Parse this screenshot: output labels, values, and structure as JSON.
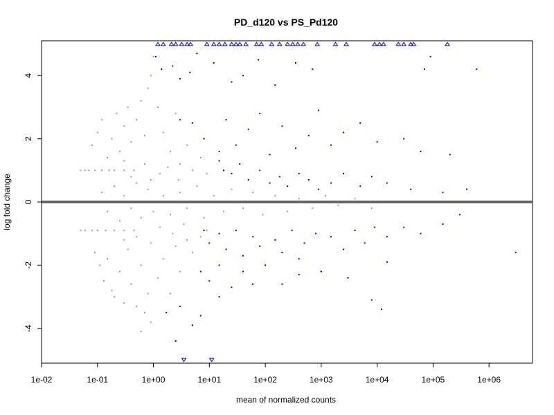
{
  "chart_data": {
    "type": "scatter",
    "title": "PD_d120 vs PS_Pd120",
    "xlabel": "mean of normalized counts",
    "ylabel": "log fold change",
    "x_scale": "log10",
    "xlim": [
      0.01,
      6000000
    ],
    "ylim": [
      -5.1,
      5.1
    ],
    "x_ticks": [
      0.01,
      0.1,
      1,
      10,
      100,
      1000,
      10000,
      100000,
      1000000
    ],
    "x_tick_labels": [
      "1e-02",
      "1e-01",
      "1e+00",
      "1e+01",
      "1e+02",
      "1e+03",
      "1e+04",
      "1e+05",
      "1e+06"
    ],
    "y_ticks": [
      -4,
      -2,
      0,
      2,
      4
    ],
    "y_tick_labels": [
      "-4",
      "-2",
      "0",
      "2",
      "4"
    ],
    "grid": false,
    "colors": {
      "not_significant": "#999999",
      "significant": "#0000cc",
      "zero_line": "#666666"
    },
    "series": [
      {
        "color": "#999999",
        "points": [
          [
            0.05,
            1.0
          ],
          [
            0.06,
            1.0
          ],
          [
            0.07,
            1.0
          ],
          [
            0.09,
            1.0
          ],
          [
            0.12,
            1.0
          ],
          [
            0.16,
            1.0
          ],
          [
            0.2,
            1.0
          ],
          [
            0.3,
            1.0
          ],
          [
            0.45,
            1.0
          ],
          [
            0.05,
            -0.9
          ],
          [
            0.06,
            -0.9
          ],
          [
            0.08,
            -0.9
          ],
          [
            0.1,
            -0.9
          ],
          [
            0.14,
            -0.9
          ],
          [
            0.2,
            -0.9
          ],
          [
            0.3,
            -0.9
          ],
          [
            0.45,
            -0.9
          ],
          [
            0.08,
            1.8
          ],
          [
            0.1,
            2.2
          ],
          [
            0.12,
            2.6
          ],
          [
            0.15,
            1.4
          ],
          [
            0.18,
            2.0
          ],
          [
            0.22,
            2.8
          ],
          [
            0.25,
            1.6
          ],
          [
            0.3,
            2.4
          ],
          [
            0.35,
            3.0
          ],
          [
            0.4,
            1.9
          ],
          [
            0.5,
            2.6
          ],
          [
            0.6,
            3.2
          ],
          [
            0.7,
            2.1
          ],
          [
            0.8,
            3.6
          ],
          [
            0.9,
            4.0
          ],
          [
            1.0,
            4.6
          ],
          [
            0.09,
            -1.6
          ],
          [
            0.11,
            -2.0
          ],
          [
            0.13,
            -2.5
          ],
          [
            0.15,
            -1.8
          ],
          [
            0.18,
            -2.8
          ],
          [
            0.2,
            -3.0
          ],
          [
            0.25,
            -2.2
          ],
          [
            0.3,
            -3.2
          ],
          [
            0.35,
            -1.5
          ],
          [
            0.4,
            -2.6
          ],
          [
            0.5,
            -3.3
          ],
          [
            0.6,
            -2.0
          ],
          [
            0.7,
            -3.5
          ],
          [
            0.8,
            -2.9
          ],
          [
            0.9,
            -3.8
          ],
          [
            0.6,
            -4.1
          ],
          [
            0.12,
            0.3
          ],
          [
            0.15,
            -0.3
          ],
          [
            0.2,
            0.5
          ],
          [
            0.25,
            -0.6
          ],
          [
            0.3,
            0.2
          ],
          [
            0.4,
            -0.2
          ],
          [
            0.5,
            0.6
          ],
          [
            0.6,
            -0.5
          ],
          [
            0.8,
            0.4
          ],
          [
            1.0,
            -0.3
          ],
          [
            1.5,
            0.2
          ],
          [
            2.0,
            -0.4
          ],
          [
            3.0,
            0.3
          ],
          [
            4.0,
            -0.2
          ],
          [
            6.0,
            0.5
          ],
          [
            8.0,
            -0.5
          ],
          [
            12,
            0.2
          ],
          [
            18,
            -0.3
          ],
          [
            25,
            0.4
          ],
          [
            40,
            -0.2
          ],
          [
            60,
            0.3
          ],
          [
            90,
            -0.4
          ],
          [
            150,
            0.2
          ],
          [
            250,
            -0.3
          ],
          [
            400,
            0.1
          ],
          [
            700,
            -0.2
          ],
          [
            1200,
            0.2
          ],
          [
            2000,
            -0.1
          ],
          [
            4000,
            0.1
          ],
          [
            8000,
            -0.2
          ],
          [
            1.2,
            3.0
          ],
          [
            1.5,
            2.2
          ],
          [
            2.0,
            1.6
          ],
          [
            2.5,
            2.8
          ],
          [
            3.0,
            1.2
          ],
          [
            4.0,
            1.8
          ],
          [
            5.0,
            1.0
          ],
          [
            7.0,
            1.4
          ],
          [
            9.0,
            0.9
          ],
          [
            1.2,
            -2.4
          ],
          [
            1.5,
            -1.8
          ],
          [
            2.0,
            -2.9
          ],
          [
            2.5,
            -1.4
          ],
          [
            3.0,
            -2.2
          ],
          [
            4.0,
            -1.2
          ],
          [
            5.0,
            -1.6
          ],
          [
            7.0,
            -1.1
          ],
          [
            9.0,
            -0.9
          ],
          [
            0.3,
            1.3
          ],
          [
            0.4,
            0.8
          ],
          [
            0.7,
            1.2
          ],
          [
            0.9,
            0.7
          ],
          [
            1.3,
            0.9
          ],
          [
            1.8,
            1.1
          ],
          [
            2.8,
            0.7
          ],
          [
            0.3,
            -1.2
          ],
          [
            0.5,
            -1.1
          ],
          [
            0.9,
            -1.3
          ],
          [
            1.3,
            -0.8
          ],
          [
            2.2,
            -1.0
          ],
          [
            3.5,
            -0.7
          ]
        ]
      },
      {
        "color": "#0000cc",
        "points": [
          [
            1.1,
            4.6
          ],
          [
            1.4,
            4.2
          ],
          [
            2.2,
            4.3
          ],
          [
            3.0,
            3.9
          ],
          [
            4.5,
            4.1
          ],
          [
            6.0,
            4.7
          ],
          [
            12,
            4.4
          ],
          [
            25,
            3.8
          ],
          [
            40,
            4.0
          ],
          [
            75,
            4.5
          ],
          [
            150,
            3.7
          ],
          [
            350,
            4.4
          ],
          [
            700,
            4.2
          ],
          [
            70000,
            4.2
          ],
          [
            90000,
            4.6
          ],
          [
            600000,
            4.2
          ],
          [
            3.0,
            2.6
          ],
          [
            5.0,
            2.5
          ],
          [
            8.0,
            2.0
          ],
          [
            15,
            1.6
          ],
          [
            20,
            2.6
          ],
          [
            30,
            1.8
          ],
          [
            50,
            2.3
          ],
          [
            80,
            2.8
          ],
          [
            120,
            1.5
          ],
          [
            200,
            2.4
          ],
          [
            350,
            1.7
          ],
          [
            600,
            2.1
          ],
          [
            900,
            2.9
          ],
          [
            1500,
            1.8
          ],
          [
            2500,
            2.2
          ],
          [
            5000,
            2.5
          ],
          [
            10000,
            1.9
          ],
          [
            30000,
            2.0
          ],
          [
            60000,
            1.6
          ],
          [
            200000,
            1.5
          ],
          [
            15,
            1.3
          ],
          [
            18,
            1.0
          ],
          [
            25,
            0.9
          ],
          [
            35,
            1.2
          ],
          [
            50,
            0.7
          ],
          [
            80,
            1.0
          ],
          [
            120,
            0.6
          ],
          [
            180,
            0.8
          ],
          [
            250,
            0.5
          ],
          [
            400,
            0.9
          ],
          [
            600,
            0.7
          ],
          [
            900,
            0.4
          ],
          [
            1500,
            0.6
          ],
          [
            2500,
            0.9
          ],
          [
            5000,
            0.5
          ],
          [
            8000,
            0.8
          ],
          [
            15000,
            0.6
          ],
          [
            40000,
            0.4
          ],
          [
            150000,
            0.3
          ],
          [
            400000,
            0.4
          ],
          [
            8,
            -0.9
          ],
          [
            10,
            -1.3
          ],
          [
            15,
            -1.0
          ],
          [
            20,
            -1.5
          ],
          [
            30,
            -0.9
          ],
          [
            40,
            -1.7
          ],
          [
            60,
            -1.1
          ],
          [
            80,
            -1.4
          ],
          [
            100,
            -2.0
          ],
          [
            150,
            -1.2
          ],
          [
            200,
            -1.6
          ],
          [
            300,
            -0.9
          ],
          [
            400,
            -1.8
          ],
          [
            500,
            -1.3
          ],
          [
            800,
            -1.0
          ],
          [
            1000,
            -2.2
          ],
          [
            1500,
            -1.1
          ],
          [
            2500,
            -1.5
          ],
          [
            4000,
            -0.9
          ],
          [
            6000,
            -1.3
          ],
          [
            9000,
            -0.8
          ],
          [
            15000,
            -1.1
          ],
          [
            30000,
            -0.8
          ],
          [
            60000,
            -1.0
          ],
          [
            150000,
            -0.7
          ],
          [
            300000,
            -0.4
          ],
          [
            7,
            -2.2
          ],
          [
            10,
            -2.5
          ],
          [
            15,
            -2.0
          ],
          [
            25,
            -2.7
          ],
          [
            40,
            -2.2
          ],
          [
            60,
            -2.6
          ],
          [
            100,
            -2.0
          ],
          [
            200,
            -2.6
          ],
          [
            400,
            -2.3
          ],
          [
            1000,
            -2.2
          ],
          [
            3000,
            -2.4
          ],
          [
            15000,
            -1.9
          ],
          [
            1.7,
            -3.5
          ],
          [
            3.0,
            -3.3
          ],
          [
            5.0,
            -3.9
          ],
          [
            7.0,
            -3.6
          ],
          [
            15,
            -3.0
          ],
          [
            8000,
            -3.1
          ],
          [
            12000,
            -3.4
          ],
          [
            3000000,
            -1.6
          ],
          [
            2.5,
            -4.4
          ]
        ]
      }
    ],
    "clipped_top": {
      "color": "#0000cc",
      "marker": "triangle-up",
      "y": 5.0,
      "x": [
        1.2,
        1.5,
        2.1,
        2.5,
        3.2,
        4.0,
        4.6,
        9.0,
        12,
        15,
        19,
        25,
        30,
        35,
        45,
        70,
        85,
        130,
        180,
        250,
        310,
        380,
        480,
        850,
        1800,
        2800,
        9000,
        11000,
        13000,
        24000,
        30000,
        40000,
        45000,
        180000
      ]
    },
    "clipped_bottom": {
      "color": "#0000cc",
      "marker": "triangle-down",
      "y": -5.0,
      "x": [
        3.5,
        11
      ]
    }
  }
}
